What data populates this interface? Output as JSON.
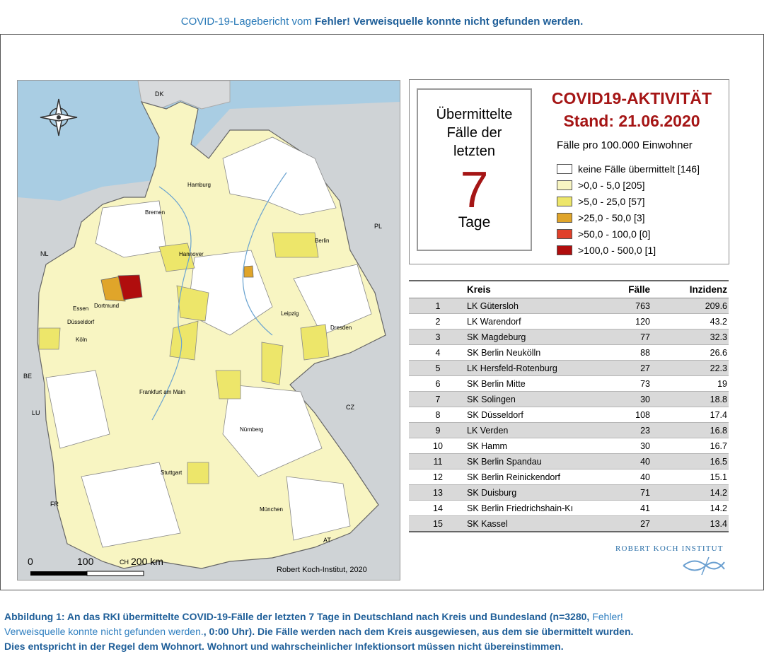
{
  "header": {
    "prefix": "COVID-19-Lagebericht vom ",
    "error": "Fehler! Verweisquelle konnte nicht gefunden werden."
  },
  "map": {
    "countries": [
      "DK",
      "NL",
      "BE",
      "LU",
      "FR",
      "PL",
      "CZ",
      "AT",
      "CH"
    ],
    "cities": [
      "Hamburg",
      "Bremen",
      "Hannover",
      "Berlin",
      "Dortmund",
      "Essen",
      "Düsseldorf",
      "Köln",
      "Leipzig",
      "Dresden",
      "Frankfurt am Main",
      "Nürnberg",
      "Stuttgart",
      "München"
    ],
    "scale": {
      "zero": "0",
      "hundred": "100",
      "two_hundred": "200 km"
    },
    "credit": "Robert Koch-Institut, 2020",
    "compass_icon": "compass-rose-icon"
  },
  "legend": {
    "box_line1": "Übermittelte",
    "box_line2": "Fälle der",
    "box_line3": "letzten",
    "box_number": "7",
    "box_unit": "Tage",
    "title": "COVID19-AKTIVITÄT",
    "date": "Stand: 21.06.2020",
    "subtitle": "Fälle pro 100.000 Einwohner",
    "items": [
      {
        "label": "keine Fälle übermittelt [146]",
        "color": "#ffffff"
      },
      {
        "label": ">0,0 - 5,0 [205]",
        "color": "#f8f5c2"
      },
      {
        "label": ">5,0 - 25,0 [57]",
        "color": "#ede66a"
      },
      {
        "label": ">25,0 - 50,0 [3]",
        "color": "#e0a52a"
      },
      {
        "label": ">50,0 - 100,0 [0]",
        "color": "#e0402a"
      },
      {
        "label": ">100,0 - 500,0 [1]",
        "color": "#b00d0d"
      }
    ]
  },
  "table": {
    "headers": {
      "rank": "",
      "kreis": "Kreis",
      "faelle": "Fälle",
      "inzidenz": "Inzidenz"
    },
    "rows": [
      {
        "rank": "1",
        "kreis": "LK Gütersloh",
        "faelle": "763",
        "inzidenz": "209.6"
      },
      {
        "rank": "2",
        "kreis": "LK Warendorf",
        "faelle": "120",
        "inzidenz": "43.2"
      },
      {
        "rank": "3",
        "kreis": "SK Magdeburg",
        "faelle": "77",
        "inzidenz": "32.3"
      },
      {
        "rank": "4",
        "kreis": "SK Berlin Neukölln",
        "faelle": "88",
        "inzidenz": "26.6"
      },
      {
        "rank": "5",
        "kreis": "LK Hersfeld-Rotenburg",
        "faelle": "27",
        "inzidenz": "22.3"
      },
      {
        "rank": "6",
        "kreis": "SK Berlin Mitte",
        "faelle": "73",
        "inzidenz": "19"
      },
      {
        "rank": "7",
        "kreis": "SK Solingen",
        "faelle": "30",
        "inzidenz": "18.8"
      },
      {
        "rank": "8",
        "kreis": "SK Düsseldorf",
        "faelle": "108",
        "inzidenz": "17.4"
      },
      {
        "rank": "9",
        "kreis": "LK Verden",
        "faelle": "23",
        "inzidenz": "16.8"
      },
      {
        "rank": "10",
        "kreis": "SK Hamm",
        "faelle": "30",
        "inzidenz": "16.7"
      },
      {
        "rank": "11",
        "kreis": "SK Berlin Spandau",
        "faelle": "40",
        "inzidenz": "16.5"
      },
      {
        "rank": "12",
        "kreis": "SK Berlin Reinickendorf",
        "faelle": "40",
        "inzidenz": "15.1"
      },
      {
        "rank": "13",
        "kreis": "SK Duisburg",
        "faelle": "71",
        "inzidenz": "14.2"
      },
      {
        "rank": "14",
        "kreis": "SK Berlin Friedrichshain-Kı",
        "faelle": "41",
        "inzidenz": "14.2"
      },
      {
        "rank": "15",
        "kreis": "SK Kassel",
        "faelle": "27",
        "inzidenz": "13.4"
      }
    ]
  },
  "logo": {
    "text": "ROBERT KOCH INSTITUT",
    "icon": "rki-logo-icon"
  },
  "caption": {
    "bold1": "Abbildung 1: An das RKI übermittelte COVID-19-Fälle der letzten 7 Tage in Deutschland nach Kreis und Bundesland (n=3280, ",
    "error1": "Fehler!",
    "error2": "Verweisquelle konnte nicht gefunden werden.",
    "bold2": ", 0:00 Uhr). Die Fälle werden nach dem Kreis ausgewiesen, aus dem sie übermittelt wurden.",
    "bold3": "Dies entspricht in der Regel dem Wohnort. Wohnort und wahrscheinlicher Infektionsort müssen nicht übereinstimmen."
  }
}
